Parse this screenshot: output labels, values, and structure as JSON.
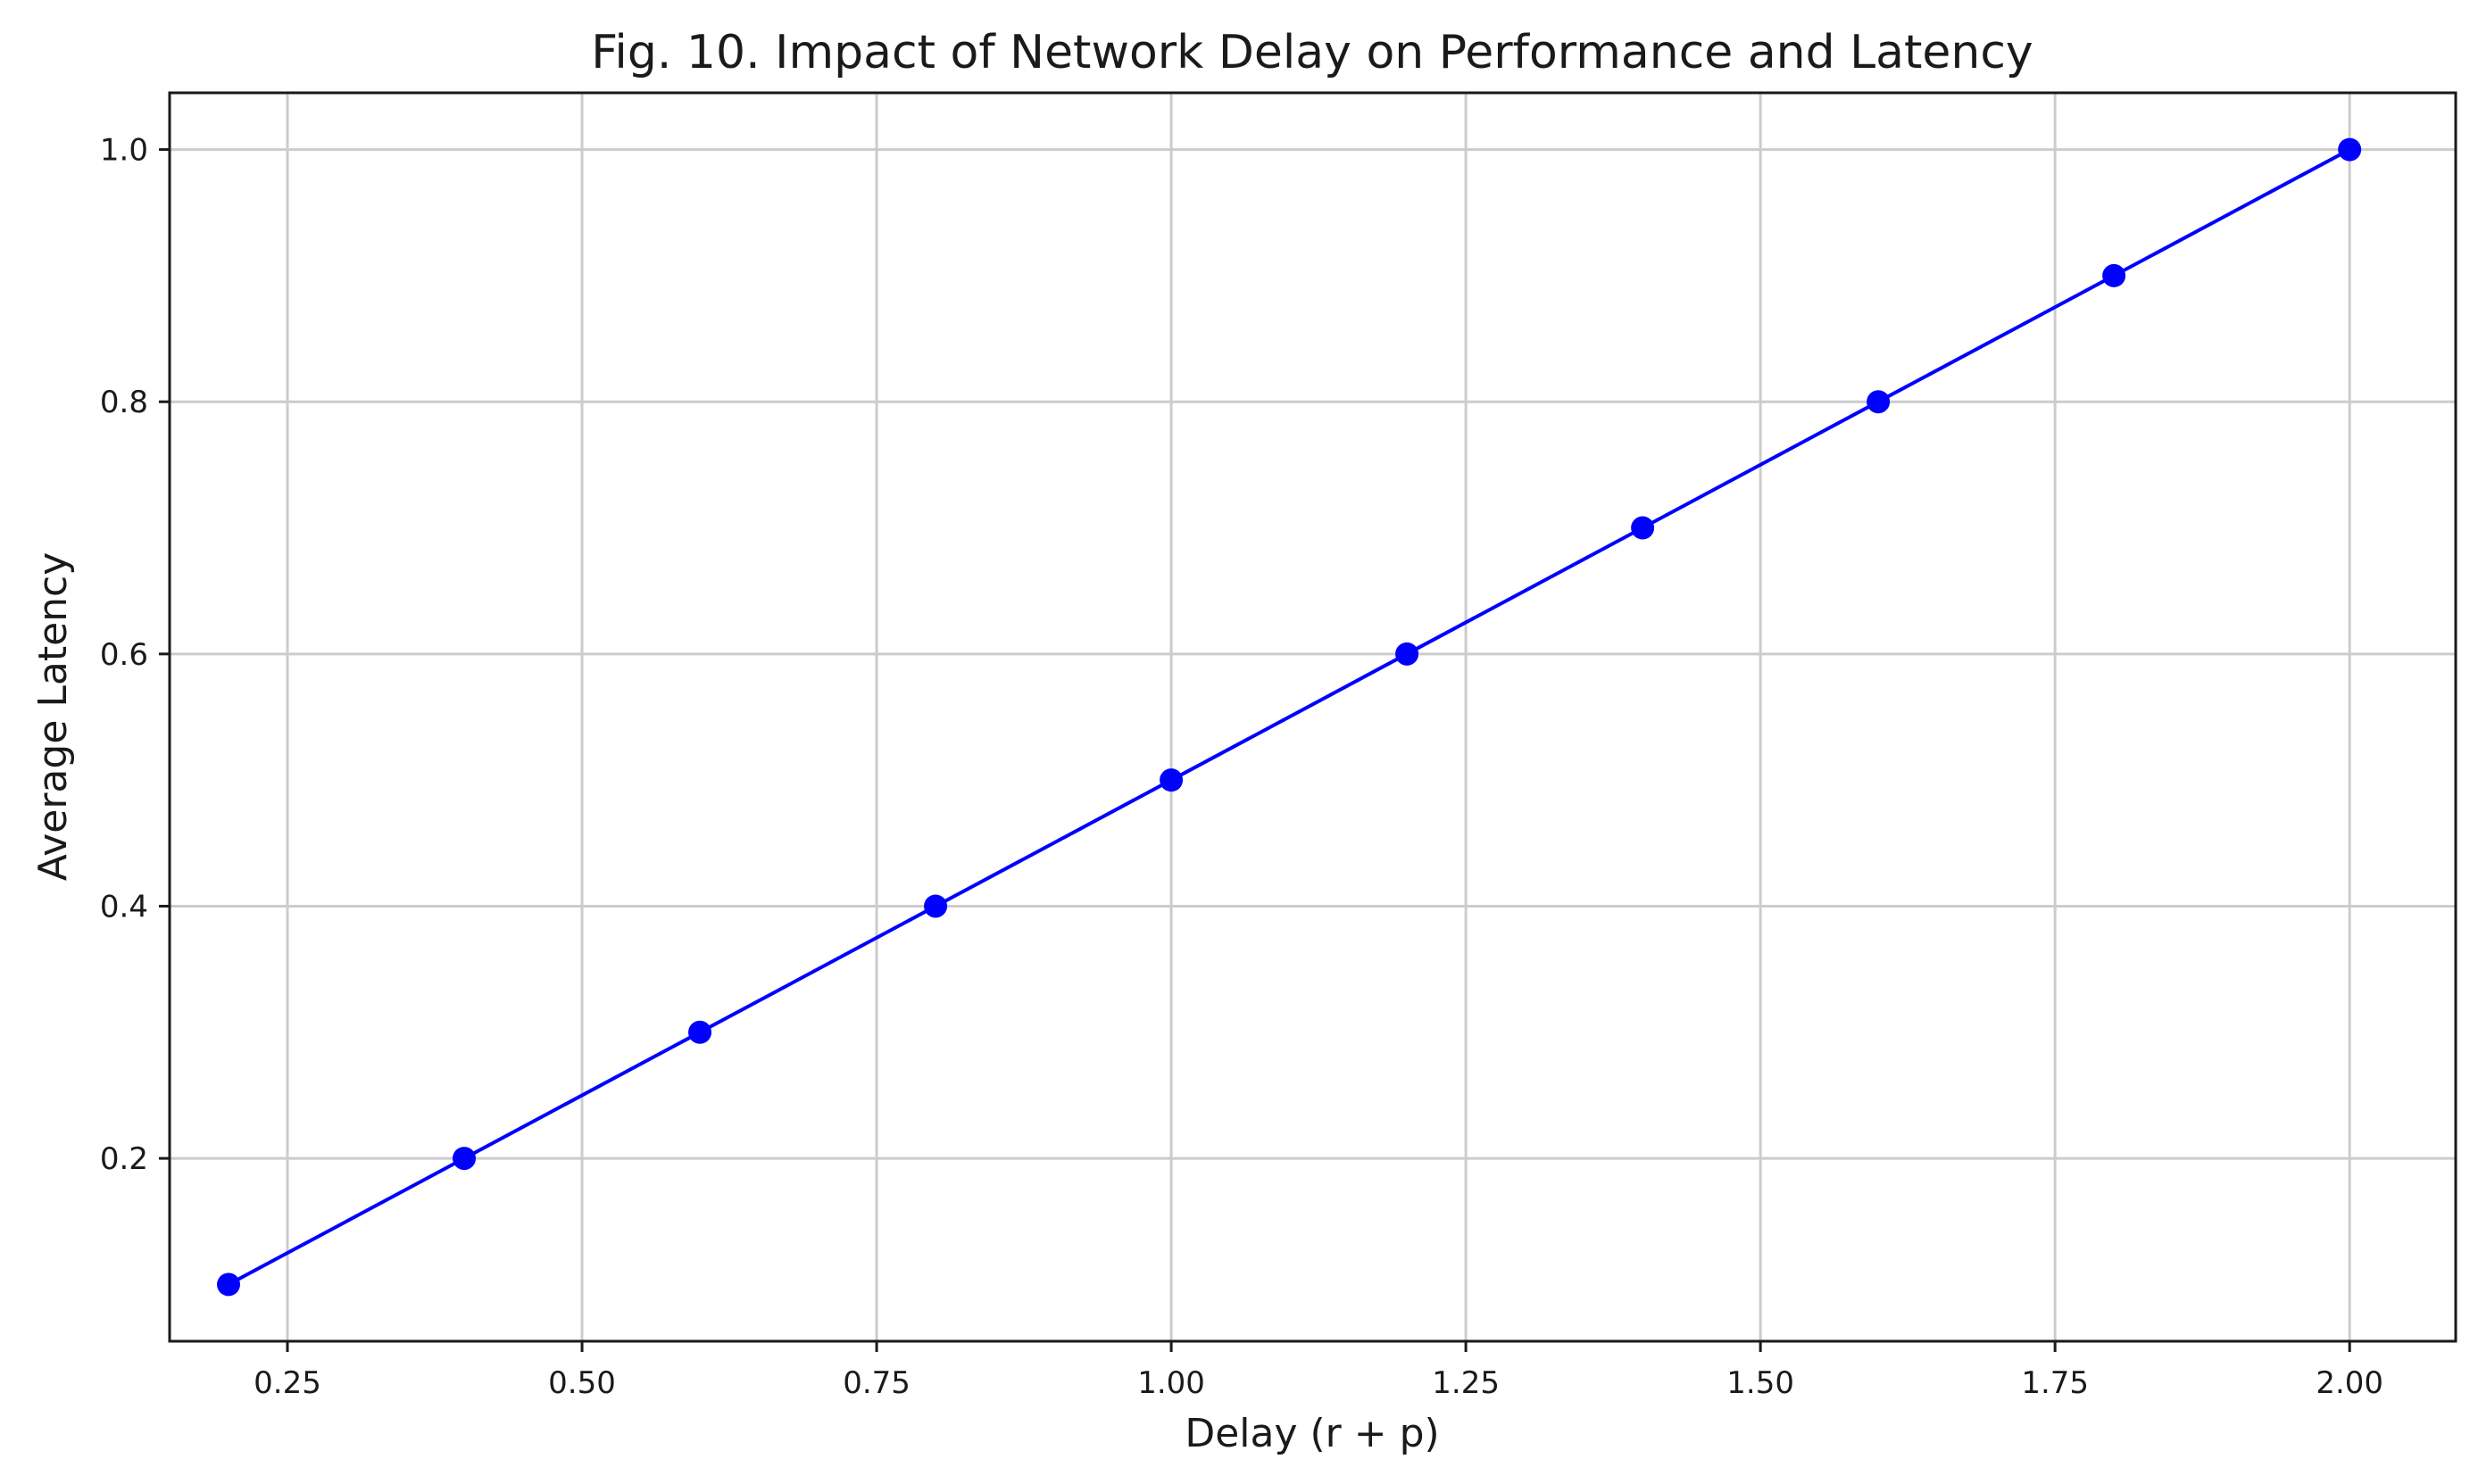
{
  "chart_data": {
    "type": "line",
    "title": "Fig. 10. Impact of Network Delay on Performance and Latency",
    "xlabel": "Delay (r + p)",
    "ylabel": "Average Latency",
    "xlim": [
      0.15,
      2.09
    ],
    "ylim": [
      0.055,
      1.045
    ],
    "xticks": [
      0.25,
      0.5,
      0.75,
      1.0,
      1.25,
      1.5,
      1.75,
      2.0
    ],
    "xtick_labels": [
      "0.25",
      "0.50",
      "0.75",
      "1.00",
      "1.25",
      "1.50",
      "1.75",
      "2.00"
    ],
    "yticks": [
      0.2,
      0.4,
      0.6,
      0.8,
      1.0
    ],
    "ytick_labels": [
      "0.2",
      "0.4",
      "0.6",
      "0.8",
      "1.0"
    ],
    "grid": true,
    "series": [
      {
        "color": "#0000ff",
        "marker": "circle",
        "x": [
          0.2,
          0.4,
          0.6,
          0.8,
          1.0,
          1.2,
          1.4,
          1.6,
          1.8,
          2.0
        ],
        "y": [
          0.1,
          0.2,
          0.3,
          0.4,
          0.5,
          0.6,
          0.7,
          0.8,
          0.9,
          1.0
        ]
      }
    ]
  }
}
